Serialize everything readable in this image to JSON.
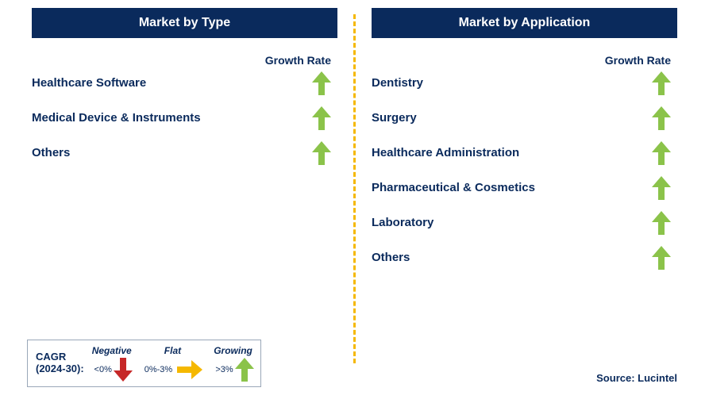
{
  "colors": {
    "header_bg": "#0a2a5c",
    "header_text": "#ffffff",
    "text": "#0a2a5c",
    "arrow_up": "#8bc34a",
    "arrow_down": "#c62828",
    "arrow_flat": "#f5b800",
    "divider": "#f5b800",
    "legend_border": "#9aa7b8"
  },
  "left": {
    "title": "Market by Type",
    "growth_label": "Growth Rate",
    "items": [
      {
        "label": "Healthcare Software",
        "growth": "up"
      },
      {
        "label": "Medical Device & Instruments",
        "growth": "up"
      },
      {
        "label": "Others",
        "growth": "up"
      }
    ]
  },
  "right": {
    "title": "Market by Application",
    "growth_label": "Growth Rate",
    "items": [
      {
        "label": "Dentistry",
        "growth": "up"
      },
      {
        "label": "Surgery",
        "growth": "up"
      },
      {
        "label": "Healthcare Administration",
        "growth": "up"
      },
      {
        "label": "Pharmaceutical & Cosmetics",
        "growth": "up"
      },
      {
        "label": "Laboratory",
        "growth": "up"
      },
      {
        "label": "Others",
        "growth": "up"
      }
    ]
  },
  "legend": {
    "title_line1": "CAGR",
    "title_line2": "(2024-30):",
    "items": [
      {
        "name": "Negative",
        "range": "<0%",
        "arrow": "down"
      },
      {
        "name": "Flat",
        "range": "0%-3%",
        "arrow": "right"
      },
      {
        "name": "Growing",
        "range": ">3%",
        "arrow": "up"
      }
    ]
  },
  "source": "Source: Lucintel"
}
